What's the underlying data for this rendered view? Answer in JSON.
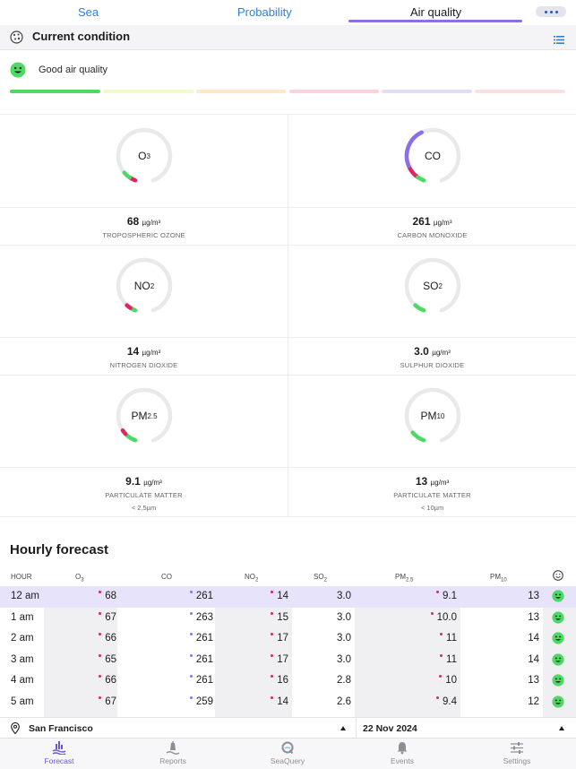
{
  "top_tabs": [
    {
      "label": "Sea",
      "active": false
    },
    {
      "label": "Probability",
      "active": false
    },
    {
      "label": "Air quality",
      "active": true
    }
  ],
  "header": {
    "title": "Current condition",
    "icon": "air-particles-icon",
    "menu_icon": "list-icon"
  },
  "status": {
    "label": "Good air quality",
    "icon": "smile-icon",
    "scale_colors": [
      "#4cd964",
      "#f4f9c8",
      "#fde8c8",
      "#fcd2dc",
      "#e4ddf7",
      "#fbe0e3"
    ],
    "active_level": 0
  },
  "pollutants": [
    {
      "symbol": "O",
      "sub": "3",
      "value": "68",
      "unit": "µg/m³",
      "name": "TROPOSPHERIC OZONE",
      "note": ""
    },
    {
      "symbol": "CO",
      "sub": "",
      "value": "261",
      "unit": "µg/m³",
      "name": "CARBON MONOXIDE",
      "note": ""
    },
    {
      "symbol": "NO",
      "sub": "2",
      "value": "14",
      "unit": "µg/m³",
      "name": "NITROGEN DIOXIDE",
      "note": ""
    },
    {
      "symbol": "SO",
      "sub": "2",
      "value": "3.0",
      "unit": "µg/m³",
      "name": "SULPHUR DIOXIDE",
      "note": ""
    },
    {
      "symbol": "PM",
      "sub": "2.5",
      "value": "9.1",
      "unit": "µg/m³",
      "name": "PARTICULATE MATTER",
      "note": "< 2.5µm"
    },
    {
      "symbol": "PM",
      "sub": "10",
      "value": "13",
      "unit": "µg/m³",
      "name": "PARTICULATE MATTER",
      "note": "< 10µm"
    }
  ],
  "hourly": {
    "title": "Hourly forecast",
    "columns": {
      "hour": "HOUR",
      "o3": "O",
      "o3_sub": "3",
      "co": "CO",
      "no2": "NO",
      "no2_sub": "2",
      "so2": "SO",
      "so2_sub": "2",
      "pm25": "PM",
      "pm25_sub": "2.5",
      "pm10": "PM",
      "pm10_sub": "10"
    },
    "rows": [
      {
        "hour": "12 am",
        "o3": "68",
        "co": "261",
        "no2": "14",
        "so2": "3.0",
        "pm25": "9.1",
        "pm10": "13"
      },
      {
        "hour": "1 am",
        "o3": "67",
        "co": "263",
        "no2": "15",
        "so2": "3.0",
        "pm25": "10.0",
        "pm10": "13"
      },
      {
        "hour": "2 am",
        "o3": "66",
        "co": "261",
        "no2": "17",
        "so2": "3.0",
        "pm25": "11",
        "pm10": "14"
      },
      {
        "hour": "3 am",
        "o3": "65",
        "co": "261",
        "no2": "17",
        "so2": "3.0",
        "pm25": "11",
        "pm10": "14"
      },
      {
        "hour": "4 am",
        "o3": "66",
        "co": "261",
        "no2": "16",
        "so2": "2.8",
        "pm25": "10",
        "pm10": "13"
      },
      {
        "hour": "5 am",
        "o3": "67",
        "co": "259",
        "no2": "14",
        "so2": "2.6",
        "pm25": "9.4",
        "pm10": "12"
      }
    ]
  },
  "location": {
    "city": "San Francisco",
    "date": "22 Nov 2024"
  },
  "tabbar": [
    {
      "label": "Forecast",
      "icon": "waves-chart-icon",
      "active": true
    },
    {
      "label": "Reports",
      "icon": "buoy-icon",
      "active": false
    },
    {
      "label": "SeaQuery",
      "icon": "seaquery-logo-icon",
      "active": false
    },
    {
      "label": "Events",
      "icon": "bell-icon",
      "active": false
    },
    {
      "label": "Settings",
      "icon": "sliders-icon",
      "active": false
    }
  ],
  "colors": {
    "accent": "#8b6ee8",
    "link": "#2f7fd8",
    "good": "#4cd964",
    "alert": "#e0245e"
  }
}
